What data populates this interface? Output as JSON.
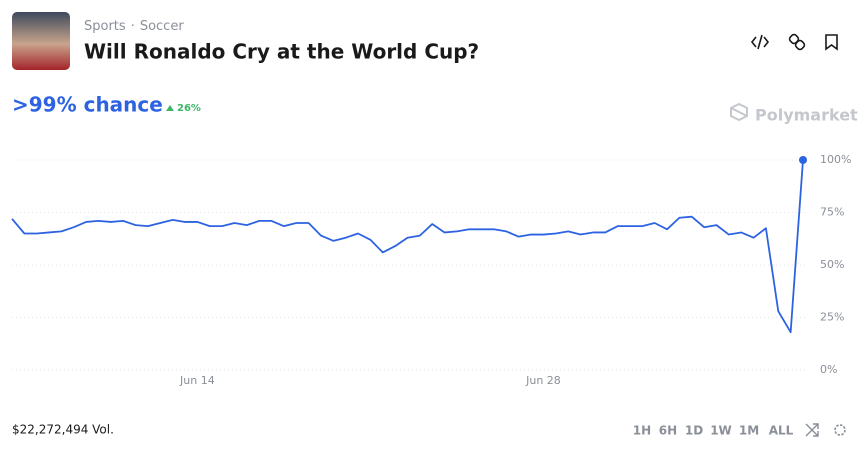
{
  "header": {
    "breadcrumb": [
      "Sports",
      "Soccer"
    ],
    "separator": "·",
    "title": "Will Ronaldo Cry at the World Cup?"
  },
  "chance": ">99% chance",
  "change": "26%",
  "brand": "Polymarket",
  "volume": "$22,272,494 Vol.",
  "ranges": [
    "1H",
    "6H",
    "1D",
    "1W",
    "1M",
    "ALL"
  ],
  "active_range": 5,
  "chart_data": {
    "type": "line",
    "color": "#2d63e2",
    "categories": [
      null,
      null,
      null,
      null,
      null,
      null,
      null,
      null,
      null,
      null,
      null,
      null,
      null,
      null,
      null,
      "Jun 14",
      null,
      null,
      null,
      null,
      null,
      null,
      null,
      null,
      null,
      null,
      null,
      null,
      null,
      null,
      null,
      null,
      null,
      null,
      null,
      null,
      null,
      null,
      null,
      null,
      null,
      null,
      null,
      "Jun 28",
      null,
      null,
      null,
      null,
      null,
      null,
      null,
      null,
      null,
      null,
      null,
      null,
      null,
      null,
      null,
      null,
      null,
      null,
      null,
      null,
      null
    ],
    "values": [
      72,
      65,
      65,
      65.5,
      66,
      68,
      70.5,
      71,
      70.5,
      71,
      69,
      68.5,
      70,
      71.5,
      70.5,
      70.5,
      68.5,
      68.5,
      70,
      69,
      71,
      71,
      68.5,
      70,
      70,
      64,
      61.5,
      63,
      65,
      62,
      56,
      59,
      63,
      64,
      69.5,
      65.5,
      66,
      67,
      67,
      67,
      66,
      63.5,
      64.5,
      64.5,
      65,
      66,
      64.5,
      65.5,
      65.5,
      68.5,
      68.5,
      68.5,
      70,
      67,
      72.5,
      73,
      68,
      69,
      64.5,
      65.5,
      63,
      67.5,
      28,
      18,
      100
    ],
    "ylim": [
      0,
      100
    ],
    "yticks": [
      {
        "value": 0,
        "label": "0%"
      },
      {
        "value": 25,
        "label": "25%"
      },
      {
        "value": 50,
        "label": "50%"
      },
      {
        "value": 75,
        "label": "75%"
      },
      {
        "value": 100,
        "label": "100%"
      }
    ],
    "grid": true
  }
}
